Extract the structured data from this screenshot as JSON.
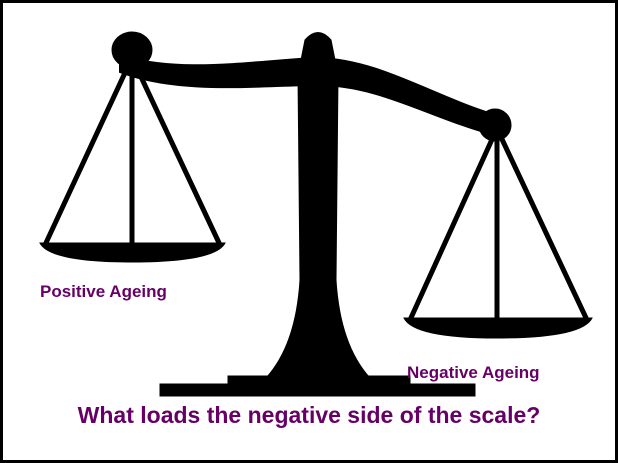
{
  "labels": {
    "left_pan": "Positive Ageing",
    "right_pan": "Negative Ageing"
  },
  "question": "What loads the negative side of the scale?"
}
